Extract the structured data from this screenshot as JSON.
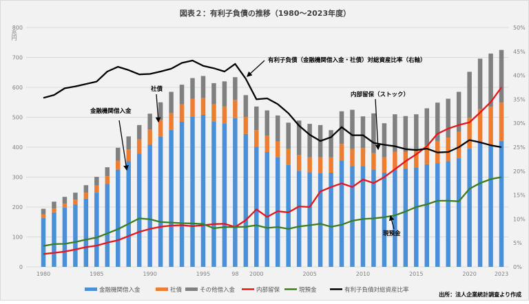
{
  "chart_data": {
    "type": "bar",
    "title": "図表２：有利子負債の推移（1980～2023年度）",
    "ylabel": "兆円",
    "ylim": [
      0,
      800
    ],
    "y_ticks": [
      "0",
      "100",
      "200",
      "300",
      "400",
      "500",
      "600",
      "700",
      "800"
    ],
    "y2lim": [
      0,
      50
    ],
    "y2_ticks": [
      "0%",
      "5%",
      "10%",
      "15%",
      "20%",
      "25%",
      "30%",
      "35%",
      "40%",
      "45%",
      "50%"
    ],
    "x_tick_labels": [
      {
        "year": 1980,
        "label": "1980"
      },
      {
        "year": 1985,
        "label": "1985"
      },
      {
        "year": 1990,
        "label": "1990"
      },
      {
        "year": 1995,
        "label": "1995"
      },
      {
        "year": 1998,
        "label": "98"
      },
      {
        "year": 2000,
        "label": "2000"
      },
      {
        "year": 2005,
        "label": "2005"
      },
      {
        "year": 2010,
        "label": "2010"
      },
      {
        "year": 2015,
        "label": "2015"
      },
      {
        "year": 2020,
        "label": "2020"
      },
      {
        "year": 2023,
        "label": "2023"
      }
    ],
    "grid": true,
    "legend_position": "bottom",
    "categories": [
      1980,
      1981,
      1982,
      1983,
      1984,
      1985,
      1986,
      1987,
      1988,
      1989,
      1990,
      1991,
      1992,
      1993,
      1994,
      1995,
      1996,
      1997,
      1998,
      1999,
      2000,
      2001,
      2002,
      2003,
      2004,
      2005,
      2006,
      2007,
      2008,
      2009,
      2010,
      2011,
      2012,
      2013,
      2014,
      2015,
      2016,
      2017,
      2018,
      2019,
      2020,
      2021,
      2022,
      2023
    ],
    "series": [
      {
        "name": "金融機関借入金",
        "kind": "bar",
        "axis": "left",
        "color": "#4a90d9",
        "values": [
          164,
          182,
          198,
          208,
          228,
          248,
          277,
          325,
          353,
          379,
          408,
          436,
          458,
          485,
          503,
          508,
          486,
          480,
          497,
          444,
          402,
          384,
          367,
          341,
          321,
          316,
          314,
          315,
          356,
          337,
          337,
          325,
          315,
          323,
          329,
          332,
          343,
          347,
          353,
          363,
          395,
          415,
          406,
          421
        ]
      },
      {
        "name": "社債",
        "kind": "bar",
        "axis": "left",
        "color": "#ed7d31",
        "values": [
          11,
          13,
          13,
          17,
          20,
          24,
          26,
          30,
          40,
          47,
          51,
          55,
          56,
          58,
          59,
          56,
          57,
          56,
          61,
          57,
          55,
          55,
          52,
          53,
          53,
          50,
          52,
          51,
          55,
          57,
          60,
          55,
          51,
          62,
          56,
          56,
          64,
          74,
          79,
          88,
          104,
          112,
          129,
          128
        ]
      },
      {
        "name": "その他借入金",
        "kind": "bar",
        "axis": "left",
        "color": "#808080",
        "values": [
          19,
          23,
          23,
          23,
          25,
          29,
          30,
          43,
          43,
          48,
          53,
          59,
          71,
          66,
          69,
          74,
          71,
          84,
          76,
          73,
          79,
          84,
          87,
          88,
          115,
          112,
          108,
          91,
          109,
          131,
          106,
          133,
          114,
          125,
          119,
          122,
          123,
          128,
          130,
          134,
          153,
          169,
          178,
          176
        ]
      },
      {
        "name": "内部留保",
        "kind": "line",
        "axis": "left",
        "color": "#e8141b",
        "values": [
          43,
          47,
          51,
          58,
          66,
          71,
          81,
          89,
          103,
          117,
          127,
          134,
          138,
          139,
          136,
          139,
          143,
          144,
          133,
          156,
          192,
          167,
          186,
          182,
          202,
          200,
          252,
          267,
          279,
          267,
          292,
          280,
          300,
          326,
          353,
          376,
          403,
          445,
          462,
          474,
          483,
          516,
          551,
          600
        ]
      },
      {
        "name": "現預金",
        "kind": "line",
        "axis": "left",
        "color": "#3a7d22",
        "values": [
          70,
          76,
          77,
          83,
          91,
          98,
          112,
          126,
          144,
          162,
          159,
          150,
          148,
          146,
          145,
          143,
          129,
          133,
          133,
          134,
          139,
          130,
          133,
          127,
          135,
          139,
          144,
          134,
          141,
          154,
          160,
          162,
          166,
          172,
          185,
          200,
          209,
          221,
          221,
          219,
          261,
          280,
          293,
          300
        ]
      },
      {
        "name": "有利子負債対総資産比率",
        "kind": "line",
        "axis": "right",
        "color": "#000000",
        "values": [
          35.3,
          35.9,
          37.3,
          37.7,
          38.2,
          38.7,
          40.8,
          41.8,
          41.1,
          40.2,
          40.3,
          40.8,
          41.4,
          42.6,
          43.1,
          42.0,
          41.5,
          40.8,
          42.4,
          39.3,
          35.0,
          35.2,
          34.0,
          32.1,
          29.5,
          27.6,
          26.3,
          27.1,
          29.2,
          27.5,
          27.5,
          25.9,
          25.5,
          25.2,
          24.6,
          24.4,
          24.7,
          23.9,
          24.0,
          25.0,
          26.5,
          26.0,
          25.4,
          25.0
        ]
      }
    ],
    "annotations": [
      {
        "text": "金融機関借入金"
      },
      {
        "text": "社債"
      },
      {
        "text": "有利子負債（金融機関借入金・社債）対総資産比率（右軸）"
      },
      {
        "text": "内部留保（ストック）"
      },
      {
        "text": "現預金"
      }
    ],
    "source": "出所：法人企業統計調査より作成"
  }
}
